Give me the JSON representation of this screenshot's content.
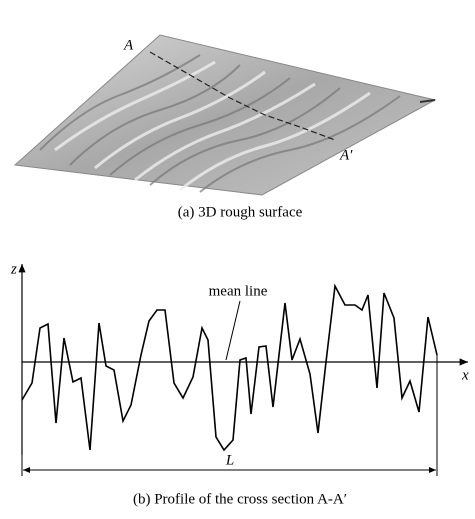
{
  "figure": {
    "panel_a": {
      "label_start": "A",
      "label_end": "A′",
      "caption": "(a)  3D rough surface"
    },
    "panel_b": {
      "axis_z": "z",
      "axis_x": "x",
      "mean_line": "mean line",
      "length": "L",
      "caption": "(b)  Profile of the cross section A-A′"
    }
  }
}
